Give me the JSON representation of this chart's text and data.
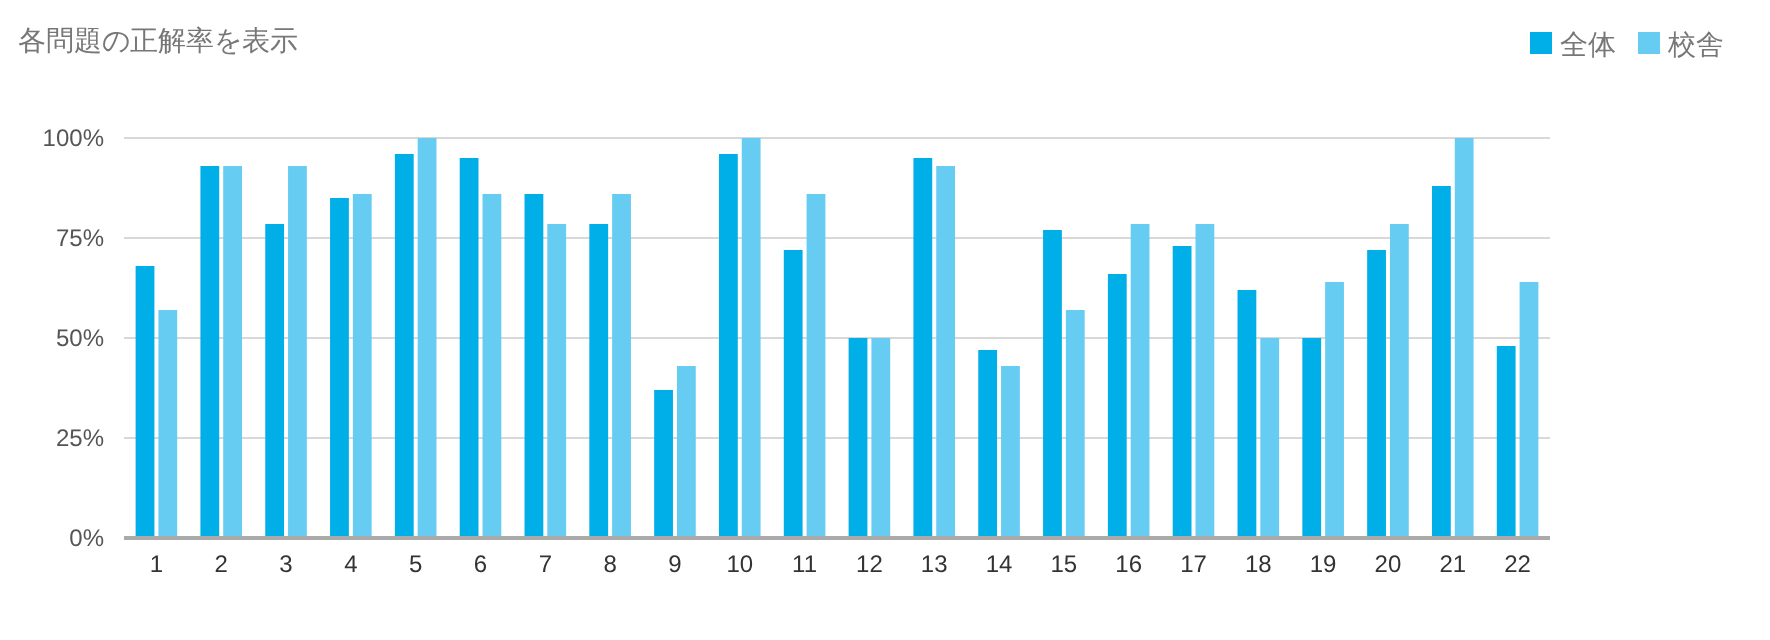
{
  "chart_data": {
    "type": "bar",
    "title": "各問題の正解率を表示",
    "categories": [
      "1",
      "2",
      "3",
      "4",
      "5",
      "6",
      "7",
      "8",
      "9",
      "10",
      "11",
      "12",
      "13",
      "14",
      "15",
      "16",
      "17",
      "18",
      "19",
      "20",
      "21",
      "22"
    ],
    "series": [
      {
        "name": "全体",
        "color": "#00aee8",
        "values": [
          68,
          93,
          78.5,
          85,
          96,
          95,
          86,
          78.5,
          37,
          96,
          72,
          50,
          95,
          47,
          77,
          66,
          73,
          62,
          50,
          72,
          88,
          48
        ]
      },
      {
        "name": "校舎",
        "color": "#66ccf2",
        "values": [
          57,
          93,
          93,
          86,
          100,
          86,
          78.5,
          86,
          43,
          100,
          86,
          50,
          93,
          43,
          57,
          78.5,
          78.5,
          50,
          64,
          78.5,
          100,
          64
        ]
      }
    ],
    "ylim": [
      0,
      100
    ],
    "yticks": [
      {
        "value": 0,
        "label": "0%"
      },
      {
        "value": 25,
        "label": "25%"
      },
      {
        "value": 50,
        "label": "50%"
      },
      {
        "value": 75,
        "label": "75%"
      },
      {
        "value": 100,
        "label": "100%"
      }
    ],
    "grid": "y",
    "legend": "top right"
  }
}
